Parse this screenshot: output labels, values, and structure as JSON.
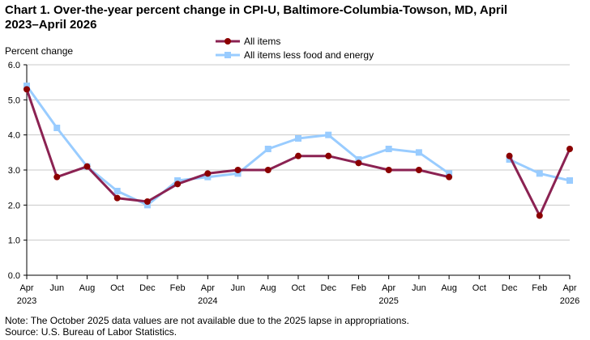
{
  "chart_data": {
    "type": "line",
    "title_line1": "Chart 1. Over-the-year percent change in CPI-U, Baltimore-Columbia-Towson,  MD, April",
    "title_line2": "2023–April  2026",
    "ylabel": "Percent change",
    "ylim": [
      0,
      6
    ],
    "yticks": [
      "0.0",
      "1.0",
      "2.0",
      "3.0",
      "4.0",
      "5.0",
      "6.0"
    ],
    "x_tick_labels": [
      "Apr",
      "Jun",
      "Aug",
      "Oct",
      "Dec",
      "Feb",
      "Apr",
      "Jun",
      "Aug",
      "Oct",
      "Dec",
      "Feb",
      "Apr",
      "Jun",
      "Aug",
      "Oct",
      "Dec",
      "Feb",
      "Apr"
    ],
    "x_year_labels": [
      {
        "tick": 0,
        "label": "2023"
      },
      {
        "tick": 6,
        "label": "2024"
      },
      {
        "tick": 12,
        "label": "2025"
      },
      {
        "tick": 18,
        "label": "2026"
      }
    ],
    "grid": true,
    "legend_position": "top-center",
    "series": [
      {
        "name": "All items",
        "color": "#8b2252",
        "marker": "circle",
        "values": [
          5.3,
          2.8,
          3.1,
          2.2,
          2.1,
          2.6,
          2.9,
          3.0,
          3.0,
          3.4,
          3.4,
          3.2,
          3.0,
          3.0,
          2.8,
          null,
          3.4,
          1.7,
          3.6
        ]
      },
      {
        "name": "All items less food and energy",
        "color": "#99ccff",
        "marker": "square",
        "values": [
          5.4,
          4.2,
          3.1,
          2.4,
          2.0,
          2.7,
          2.8,
          2.9,
          3.6,
          3.9,
          4.0,
          3.3,
          3.6,
          3.5,
          2.9,
          null,
          3.3,
          2.9,
          2.7
        ]
      }
    ],
    "note": "Note: The October 2025 data values  are not available  due to the 2025 lapse in appropriations.",
    "source": "Source: U.S. Bureau of Labor Statistics."
  }
}
